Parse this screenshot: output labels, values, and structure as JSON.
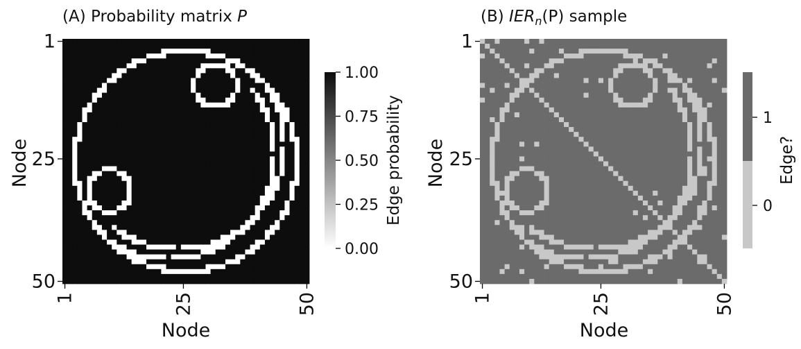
{
  "chart_data": [
    {
      "type": "heatmap",
      "panel_label": "(A) Probability matrix ",
      "title_math": "P",
      "xlabel": "Node",
      "ylabel": "Node",
      "x_ticks": [
        "1",
        "25",
        "50"
      ],
      "y_ticks": [
        "1",
        "25",
        "50"
      ],
      "n_nodes": 50,
      "cmap": "Greys",
      "colorbar": {
        "label": "Edge probability",
        "ticks": [
          "0.00",
          "0.25",
          "0.50",
          "0.75",
          "1.00"
        ],
        "vmin": 0.0,
        "vmax": 1.0
      },
      "colors": {
        "high": "#0d0d0d",
        "low": "#ffffff"
      }
    },
    {
      "type": "heatmap",
      "panel_label": "(B) ",
      "title_math": "IER",
      "title_sub": "n",
      "title_rest": "(P) sample",
      "xlabel": "Node",
      "ylabel": "Node",
      "x_ticks": [
        "1",
        "25",
        "50"
      ],
      "y_ticks": [
        "1",
        "25",
        "50"
      ],
      "n_nodes": 50,
      "colorbar": {
        "label": "Edge?",
        "ticks": [
          "0",
          "1"
        ],
        "categories": [
          0,
          1
        ]
      },
      "colors": {
        "edge": "#6b6b6b",
        "no_edge": "#c8c8c8"
      }
    }
  ]
}
